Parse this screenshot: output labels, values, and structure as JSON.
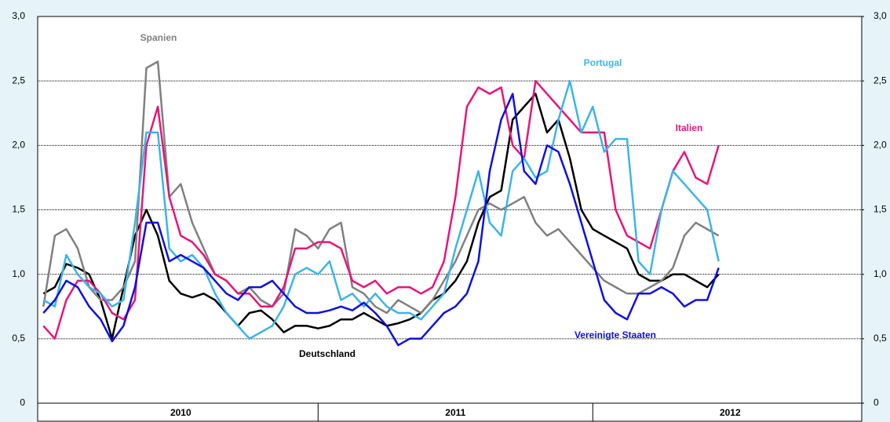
{
  "chart_data": {
    "type": "line",
    "categories": [
      null,
      null,
      null,
      null,
      null,
      null,
      null,
      null,
      null,
      null,
      null,
      null,
      "2010",
      null,
      null,
      null,
      null,
      null,
      null,
      null,
      null,
      null,
      null,
      null,
      null,
      null,
      null,
      null,
      null,
      null,
      null,
      null,
      null,
      null,
      null,
      null,
      "2011",
      null,
      null,
      null,
      null,
      null,
      null,
      null,
      null,
      null,
      null,
      null,
      null,
      null,
      null,
      null,
      null,
      null,
      null,
      null,
      null,
      null,
      null,
      null,
      "2012",
      null,
      null,
      null,
      null,
      null,
      null,
      null,
      null,
      null,
      null,
      null
    ],
    "series": [
      {
        "name": "Deutschland",
        "color": "#000000",
        "values": [
          0.85,
          0.9,
          1.08,
          1.05,
          1.0,
          0.8,
          0.5,
          0.9,
          1.3,
          1.5,
          1.3,
          0.95,
          0.85,
          0.82,
          0.85,
          0.8,
          0.7,
          0.6,
          0.7,
          0.72,
          0.65,
          0.55,
          0.6,
          0.6,
          0.58,
          0.6,
          0.65,
          0.65,
          0.7,
          0.65,
          0.6,
          0.62,
          0.65,
          0.7,
          0.8,
          0.85,
          0.95,
          1.1,
          1.4,
          1.6,
          1.65,
          2.2,
          2.3,
          2.4,
          2.1,
          2.2,
          1.9,
          1.5,
          1.35,
          1.3,
          1.25,
          1.2,
          1.0,
          0.95,
          0.95,
          1.0,
          1.0,
          0.95,
          0.9,
          1.0,
          null,
          null,
          null,
          null,
          null,
          null,
          null,
          null,
          null,
          null,
          null,
          null
        ]
      },
      {
        "name": "Spanien",
        "color": "#808080",
        "values": [
          0.75,
          1.3,
          1.35,
          1.2,
          0.9,
          0.8,
          0.8,
          0.9,
          1.1,
          2.6,
          2.65,
          1.6,
          1.7,
          1.4,
          1.2,
          1.0,
          0.95,
          0.85,
          0.9,
          0.8,
          0.75,
          0.85,
          1.35,
          1.3,
          1.2,
          1.35,
          1.4,
          0.9,
          0.85,
          0.75,
          0.7,
          0.8,
          0.75,
          0.7,
          0.8,
          0.95,
          1.1,
          1.3,
          1.5,
          1.55,
          1.5,
          1.55,
          1.6,
          1.4,
          1.3,
          1.35,
          1.25,
          1.15,
          1.05,
          0.95,
          0.9,
          0.85,
          0.85,
          0.9,
          0.95,
          1.05,
          1.3,
          1.4,
          1.35,
          1.3,
          null,
          null,
          null,
          null,
          null,
          null,
          null,
          null,
          null,
          null,
          null,
          null
        ]
      },
      {
        "name": "Italien",
        "color": "#e8157a",
        "values": [
          0.6,
          0.5,
          0.8,
          0.95,
          0.95,
          0.85,
          0.7,
          0.65,
          0.8,
          2.0,
          2.3,
          1.6,
          1.3,
          1.25,
          1.15,
          1.0,
          0.95,
          0.85,
          0.85,
          0.75,
          0.75,
          0.9,
          1.2,
          1.2,
          1.25,
          1.25,
          1.2,
          0.95,
          0.9,
          0.95,
          0.85,
          0.9,
          0.9,
          0.85,
          0.9,
          1.1,
          1.6,
          2.3,
          2.45,
          2.4,
          2.45,
          2.0,
          1.9,
          2.5,
          2.4,
          2.3,
          2.2,
          2.1,
          2.1,
          2.1,
          1.5,
          1.3,
          1.25,
          1.2,
          1.5,
          1.8,
          1.95,
          1.75,
          1.7,
          2.0,
          null,
          null,
          null,
          null,
          null,
          null,
          null,
          null,
          null,
          null,
          null,
          null
        ]
      },
      {
        "name": "Portugal",
        "color": "#3cb4ea",
        "values": [
          0.8,
          0.75,
          1.15,
          1.0,
          0.9,
          0.85,
          0.75,
          0.8,
          1.4,
          2.1,
          2.1,
          1.2,
          1.1,
          1.15,
          1.05,
          0.85,
          0.7,
          0.6,
          0.5,
          0.55,
          0.6,
          0.75,
          1.0,
          1.05,
          1.0,
          1.1,
          0.8,
          0.85,
          0.75,
          0.85,
          0.75,
          0.7,
          0.7,
          0.65,
          0.75,
          0.85,
          1.2,
          1.5,
          1.8,
          1.4,
          1.3,
          1.8,
          1.9,
          1.75,
          1.8,
          2.2,
          2.5,
          2.1,
          2.3,
          1.95,
          2.05,
          2.05,
          1.1,
          1.0,
          1.5,
          1.8,
          1.7,
          1.6,
          1.5,
          1.1,
          null,
          null,
          null,
          null,
          null,
          null,
          null,
          null,
          null,
          null,
          null,
          null
        ]
      },
      {
        "name": "Vereinigte Staaten",
        "color": "#1010e0",
        "values": [
          0.7,
          0.8,
          0.95,
          0.9,
          0.75,
          0.65,
          0.48,
          0.6,
          0.9,
          1.4,
          1.4,
          1.1,
          1.15,
          1.1,
          1.05,
          0.95,
          0.85,
          0.8,
          0.9,
          0.9,
          0.95,
          0.85,
          0.75,
          0.7,
          0.7,
          0.72,
          0.75,
          0.72,
          0.78,
          0.7,
          0.6,
          0.45,
          0.5,
          0.5,
          0.6,
          0.7,
          0.75,
          0.85,
          1.1,
          1.8,
          2.2,
          2.4,
          1.8,
          1.7,
          2.0,
          1.95,
          1.7,
          1.4,
          1.1,
          0.8,
          0.7,
          0.65,
          0.85,
          0.85,
          0.9,
          0.85,
          0.75,
          0.8,
          0.8,
          1.05,
          null,
          null,
          null,
          null,
          null,
          null,
          null,
          null,
          null,
          null,
          null,
          null
        ]
      }
    ],
    "ylim": [
      0,
      3
    ],
    "yticks": [
      0,
      {
        "value": 0.5,
        "label": "0,5"
      },
      {
        "value": 1,
        "label": "1,0"
      },
      {
        "value": 1.5,
        "label": "1,5"
      },
      {
        "value": 2,
        "label": "2,0"
      },
      {
        "value": 2.5,
        "label": "2,5"
      },
      {
        "value": 3,
        "label": "3,0"
      }
    ],
    "y2lim": [
      0,
      3
    ],
    "y2ticks": [
      0,
      {
        "value": 0.5,
        "label": "0,5"
      },
      {
        "value": 1,
        "label": "1,0"
      },
      {
        "value": 1.5,
        "label": "1,5"
      },
      {
        "value": 2,
        "label": "2,0"
      },
      {
        "value": 2.5,
        "label": "2,5"
      },
      {
        "value": 3,
        "label": "3,0"
      }
    ],
    "grid": true
  }
}
